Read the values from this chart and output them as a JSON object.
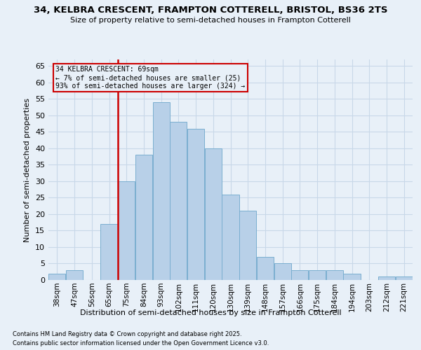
{
  "title1": "34, KELBRA CRESCENT, FRAMPTON COTTERELL, BRISTOL, BS36 2TS",
  "title2": "Size of property relative to semi-detached houses in Frampton Cotterell",
  "xlabel": "Distribution of semi-detached houses by size in Frampton Cotterell",
  "ylabel": "Number of semi-detached properties",
  "footnote1": "Contains HM Land Registry data © Crown copyright and database right 2025.",
  "footnote2": "Contains public sector information licensed under the Open Government Licence v3.0.",
  "annotation_title": "34 KELBRA CRESCENT: 69sqm",
  "annotation_line1": "← 7% of semi-detached houses are smaller (25)",
  "annotation_line2": "93% of semi-detached houses are larger (324) →",
  "property_size": 69,
  "bar_labels": [
    "38sqm",
    "47sqm",
    "56sqm",
    "65sqm",
    "75sqm",
    "84sqm",
    "93sqm",
    "102sqm",
    "111sqm",
    "120sqm",
    "130sqm",
    "139sqm",
    "148sqm",
    "157sqm",
    "166sqm",
    "175sqm",
    "184sqm",
    "194sqm",
    "203sqm",
    "212sqm",
    "221sqm"
  ],
  "bar_values": [
    2,
    3,
    0,
    17,
    30,
    38,
    54,
    48,
    46,
    40,
    26,
    21,
    7,
    5,
    3,
    3,
    3,
    2,
    0,
    1,
    1
  ],
  "bar_color": "#b8d0e8",
  "bar_edgecolor": "#7aaed0",
  "vline_color": "#cc0000",
  "vline_x": 4,
  "annotation_box_color": "#cc0000",
  "grid_color": "#c8d8e8",
  "bg_color": "#e8f0f8",
  "ylim": [
    0,
    67
  ],
  "yticks": [
    0,
    5,
    10,
    15,
    20,
    25,
    30,
    35,
    40,
    45,
    50,
    55,
    60,
    65
  ]
}
